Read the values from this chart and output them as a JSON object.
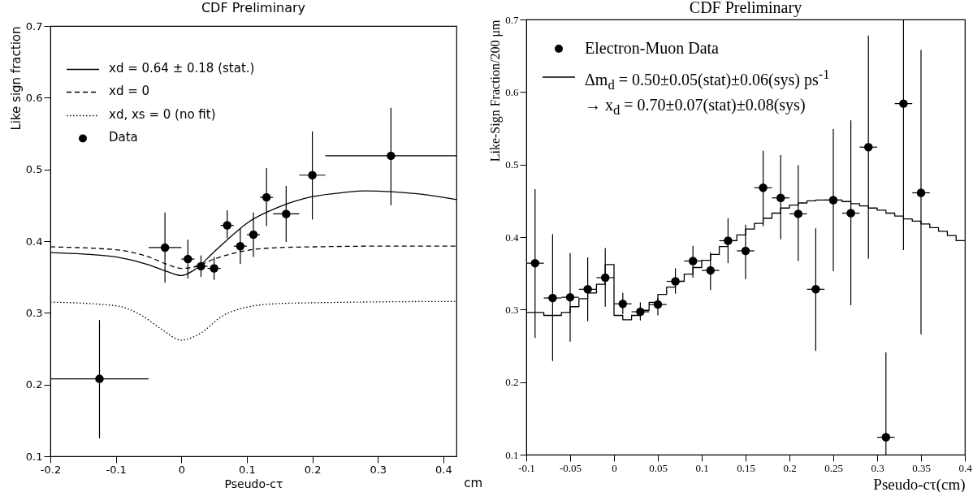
{
  "chart_data": [
    {
      "type": "scatter",
      "title": "CDF Preliminary",
      "xlabel": "Pseudo-cτ",
      "ylabel": "Like sign fraction",
      "annotations": [
        "cm"
      ],
      "xlim": [
        -0.2,
        0.42
      ],
      "ylim": [
        0.1,
        0.7
      ],
      "xticks": [
        -0.2,
        -0.1,
        0,
        0.1,
        0.2,
        0.3,
        0.4
      ],
      "yticks": [
        0.1,
        0.2,
        0.3,
        0.4,
        0.5,
        0.6,
        0.7
      ],
      "legend": "top left",
      "series": [
        {
          "name": "xd = 0.64 ± 0.18 (stat.)",
          "type": "line",
          "line_style": "solid",
          "color": "#000000",
          "x": [
            -0.2,
            -0.15,
            -0.1,
            -0.05,
            -0.02,
            0,
            0.02,
            0.05,
            0.08,
            0.1,
            0.15,
            0.2,
            0.25,
            0.28,
            0.32,
            0.36,
            0.4,
            0.42
          ],
          "values": [
            0.384,
            0.382,
            0.378,
            0.367,
            0.357,
            0.352,
            0.36,
            0.385,
            0.41,
            0.425,
            0.448,
            0.462,
            0.468,
            0.47,
            0.469,
            0.466,
            0.461,
            0.458
          ]
        },
        {
          "name": "xd = 0",
          "type": "line",
          "line_style": "dashed",
          "color": "#000000",
          "x": [
            -0.2,
            -0.1,
            -0.05,
            -0.02,
            0,
            0.02,
            0.05,
            0.1,
            0.15,
            0.2,
            0.3,
            0.42
          ],
          "values": [
            0.392,
            0.388,
            0.378,
            0.367,
            0.362,
            0.364,
            0.375,
            0.387,
            0.391,
            0.392,
            0.393,
            0.393
          ]
        },
        {
          "name": "xd, xs = 0 (no fit)",
          "type": "line",
          "line_style": "dotted",
          "color": "#000000",
          "x": [
            -0.2,
            -0.1,
            -0.06,
            -0.03,
            0,
            0.03,
            0.06,
            0.1,
            0.15,
            0.2,
            0.42
          ],
          "values": [
            0.315,
            0.31,
            0.296,
            0.277,
            0.262,
            0.272,
            0.294,
            0.308,
            0.313,
            0.314,
            0.316
          ]
        },
        {
          "name": "Data",
          "marker": "circle",
          "color": "#000000",
          "x": [
            -0.125,
            -0.025,
            0.01,
            0.03,
            0.05,
            0.07,
            0.09,
            0.11,
            0.13,
            0.16,
            0.2,
            0.32
          ],
          "values": [
            0.208,
            0.391,
            0.375,
            0.365,
            0.362,
            0.422,
            0.393,
            0.409,
            0.461,
            0.438,
            0.492,
            0.519
          ],
          "errors": [
            [
              0.125,
              0.29
            ],
            [
              0.342,
              0.44
            ],
            [
              0.348,
              0.402
            ],
            [
              0.35,
              0.38
            ],
            [
              0.346,
              0.378
            ],
            [
              0.404,
              0.443
            ],
            [
              0.368,
              0.418
            ],
            [
              0.378,
              0.44
            ],
            [
              0.421,
              0.502
            ],
            [
              0.399,
              0.477
            ],
            [
              0.43,
              0.553
            ],
            [
              0.45,
              0.586
            ]
          ],
          "xerrors": [
            [
              -0.2,
              -0.05
            ],
            [
              -0.05,
              0
            ],
            [
              0,
              0.02
            ],
            [
              0.02,
              0.04
            ],
            [
              0.04,
              0.06
            ],
            [
              0.06,
              0.08
            ],
            [
              0.08,
              0.1
            ],
            [
              0.1,
              0.12
            ],
            [
              0.12,
              0.14
            ],
            [
              0.14,
              0.18
            ],
            [
              0.18,
              0.22
            ],
            [
              0.22,
              0.42
            ]
          ]
        }
      ]
    },
    {
      "type": "scatter",
      "title": "CDF Preliminary",
      "xlabel": "Pseudo-cτ(cm)",
      "ylabel": "Like-Sign Fraction/200 μm",
      "xlim": [
        -0.1,
        0.4
      ],
      "ylim": [
        0.1,
        0.7
      ],
      "xticks": [
        -0.1,
        -0.05,
        0,
        0.05,
        0.1,
        0.15,
        0.2,
        0.25,
        0.3,
        0.35,
        0.4
      ],
      "yticks": [
        0.1,
        0.2,
        0.3,
        0.4,
        0.5,
        0.6,
        0.7
      ],
      "legend": "top left",
      "series": [
        {
          "name": "Electron-Muon Data",
          "marker": "circle",
          "color": "#000000",
          "x": [
            -0.09,
            -0.07,
            -0.05,
            -0.03,
            -0.01,
            0.01,
            0.03,
            0.05,
            0.07,
            0.09,
            0.11,
            0.13,
            0.15,
            0.17,
            0.19,
            0.21,
            0.23,
            0.25,
            0.27,
            0.29,
            0.31,
            0.33,
            0.35
          ],
          "values": [
            0.364,
            0.316,
            0.317,
            0.328,
            0.344,
            0.308,
            0.297,
            0.307,
            0.339,
            0.367,
            0.354,
            0.395,
            0.381,
            0.468,
            0.454,
            0.432,
            0.328,
            0.451,
            0.433,
            0.524,
            0.124,
            0.584,
            0.461
          ],
          "errors": [
            [
              0.261,
              0.466
            ],
            [
              0.229,
              0.404
            ],
            [
              0.256,
              0.378
            ],
            [
              0.284,
              0.372
            ],
            [
              0.304,
              0.385
            ],
            [
              0.294,
              0.323
            ],
            [
              0.285,
              0.31
            ],
            [
              0.292,
              0.316
            ],
            [
              0.322,
              0.357
            ],
            [
              0.344,
              0.388
            ],
            [
              0.327,
              0.379
            ],
            [
              0.364,
              0.426
            ],
            [
              0.342,
              0.417
            ],
            [
              0.415,
              0.519
            ],
            [
              0.397,
              0.513
            ],
            [
              0.367,
              0.499
            ],
            [
              0.243,
              0.412
            ],
            [
              0.353,
              0.549
            ],
            [
              0.306,
              0.561
            ],
            [
              0.37,
              0.678
            ],
            [
              0.1,
              0.241
            ],
            [
              0.382,
              0.7
            ],
            [
              0.266,
              0.658
            ]
          ],
          "xerrors": [
            0.01,
            0.01,
            0.01,
            0.01,
            0.01,
            0.01,
            0.01,
            0.01,
            0.01,
            0.01,
            0.01,
            0.01,
            0.01,
            0.01,
            0.01,
            0.01,
            0.01,
            0.01,
            0.01,
            0.01,
            0.01,
            0.01,
            0.01
          ]
        },
        {
          "name": "Δm$_{d}$ = 0.50±0.05(stat)±0.06(sys) ps$^{-1}$\n→ x$_{d}$ = 0.70±0.07(stat)±0.08(sys)",
          "type": "step",
          "line_style": "solid",
          "color": "#000000",
          "x": [
            -0.1,
            -0.09,
            -0.08,
            -0.07,
            -0.06,
            -0.05,
            -0.04,
            -0.03,
            -0.02,
            -0.01,
            0,
            0.01,
            0.02,
            0.03,
            0.04,
            0.05,
            0.06,
            0.07,
            0.08,
            0.09,
            0.1,
            0.11,
            0.12,
            0.13,
            0.14,
            0.15,
            0.16,
            0.17,
            0.18,
            0.19,
            0.2,
            0.21,
            0.22,
            0.23,
            0.24,
            0.25,
            0.26,
            0.27,
            0.28,
            0.29,
            0.3,
            0.31,
            0.32,
            0.33,
            0.34,
            0.35,
            0.36,
            0.37,
            0.38,
            0.39,
            0.4
          ],
          "values": [
            0.296,
            0.296,
            0.292,
            0.292,
            0.296,
            0.304,
            0.315,
            0.323,
            0.335,
            0.362,
            0.292,
            0.286,
            0.292,
            0.299,
            0.31,
            0.321,
            0.331,
            0.339,
            0.349,
            0.358,
            0.368,
            0.376,
            0.387,
            0.395,
            0.403,
            0.411,
            0.419,
            0.426,
            0.433,
            0.44,
            0.444,
            0.447,
            0.45,
            0.451,
            0.451,
            0.451,
            0.449,
            0.446,
            0.443,
            0.44,
            0.437,
            0.433,
            0.429,
            0.425,
            0.422,
            0.418,
            0.413,
            0.408,
            0.402,
            0.395,
            0.395
          ]
        }
      ]
    }
  ]
}
